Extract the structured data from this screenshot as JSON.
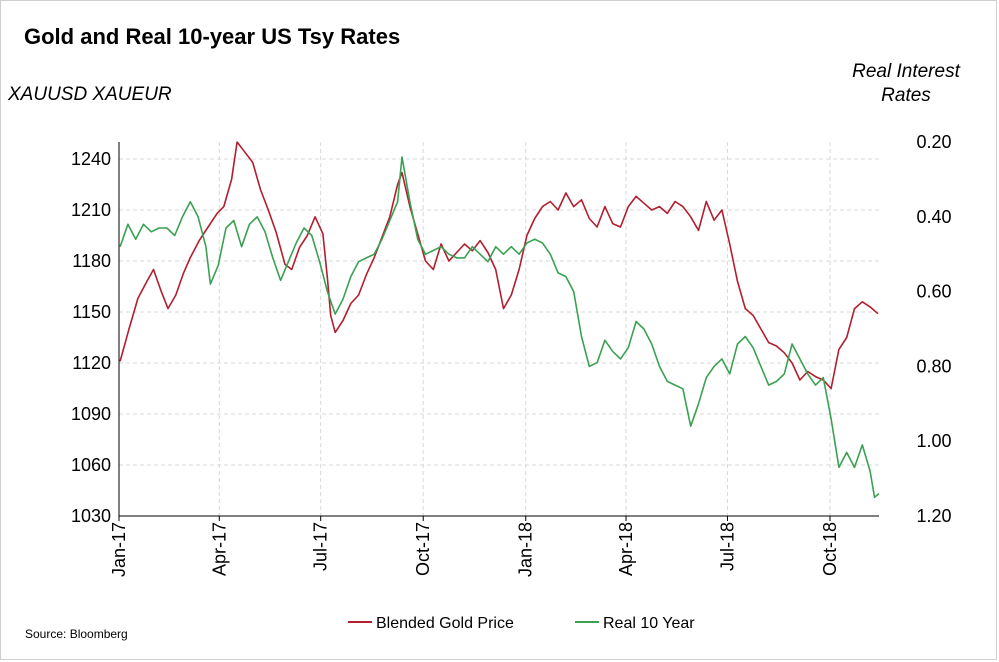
{
  "chart_data": {
    "type": "line",
    "title": "Gold and Real 10-year US Tsy Rates",
    "ylabel_left": "XAUUSD XAUEUR",
    "ylabel_right": "Real Interest Rates",
    "source": "Source: Bloomberg",
    "x_ticks": [
      "Jan-17",
      "Apr-17",
      "Jul-17",
      "Oct-17",
      "Jan-18",
      "Apr-18",
      "Jul-18",
      "Oct-18"
    ],
    "x_range": [
      "2017-01-01",
      "2018-11-14"
    ],
    "y_left": {
      "ticks": [
        1240,
        1210,
        1180,
        1150,
        1120,
        1090,
        1060,
        1030
      ],
      "lim": [
        1030,
        1250
      ]
    },
    "y_right": {
      "ticks": [
        "0.20",
        "0.40",
        "0.60",
        "0.80",
        "1.00",
        "1.20"
      ],
      "lim": [
        0.2,
        1.2
      ],
      "inverted": true
    },
    "grid": true,
    "legend_position": "bottom",
    "series": [
      {
        "name": "Blended Gold Price",
        "color": "#b21e2e",
        "axis": "left",
        "points": [
          [
            "2017-01-02",
            1121
          ],
          [
            "2017-01-10",
            1140
          ],
          [
            "2017-01-18",
            1158
          ],
          [
            "2017-01-26",
            1168
          ],
          [
            "2017-02-01",
            1175
          ],
          [
            "2017-02-08",
            1162
          ],
          [
            "2017-02-14",
            1152
          ],
          [
            "2017-02-21",
            1160
          ],
          [
            "2017-02-28",
            1173
          ],
          [
            "2017-03-06",
            1182
          ],
          [
            "2017-03-14",
            1192
          ],
          [
            "2017-03-22",
            1200
          ],
          [
            "2017-03-30",
            1208
          ],
          [
            "2017-04-05",
            1212
          ],
          [
            "2017-04-12",
            1228
          ],
          [
            "2017-04-17",
            1250
          ],
          [
            "2017-04-24",
            1244
          ],
          [
            "2017-05-01",
            1238
          ],
          [
            "2017-05-08",
            1222
          ],
          [
            "2017-05-15",
            1210
          ],
          [
            "2017-05-22",
            1197
          ],
          [
            "2017-05-30",
            1178
          ],
          [
            "2017-06-05",
            1175
          ],
          [
            "2017-06-12",
            1188
          ],
          [
            "2017-06-19",
            1195
          ],
          [
            "2017-06-26",
            1206
          ],
          [
            "2017-07-03",
            1196
          ],
          [
            "2017-07-07",
            1170
          ],
          [
            "2017-07-10",
            1148
          ],
          [
            "2017-07-14",
            1138
          ],
          [
            "2017-07-21",
            1145
          ],
          [
            "2017-07-28",
            1155
          ],
          [
            "2017-08-04",
            1160
          ],
          [
            "2017-08-11",
            1172
          ],
          [
            "2017-08-18",
            1182
          ],
          [
            "2017-08-25",
            1194
          ],
          [
            "2017-09-01",
            1206
          ],
          [
            "2017-09-08",
            1225
          ],
          [
            "2017-09-12",
            1232
          ],
          [
            "2017-09-19",
            1212
          ],
          [
            "2017-09-26",
            1196
          ],
          [
            "2017-10-03",
            1180
          ],
          [
            "2017-10-10",
            1175
          ],
          [
            "2017-10-17",
            1190
          ],
          [
            "2017-10-24",
            1180
          ],
          [
            "2017-10-31",
            1185
          ],
          [
            "2017-11-07",
            1190
          ],
          [
            "2017-11-14",
            1186
          ],
          [
            "2017-11-21",
            1192
          ],
          [
            "2017-11-28",
            1185
          ],
          [
            "2017-12-05",
            1175
          ],
          [
            "2017-12-12",
            1152
          ],
          [
            "2017-12-19",
            1160
          ],
          [
            "2017-12-26",
            1175
          ],
          [
            "2018-01-02",
            1195
          ],
          [
            "2018-01-09",
            1205
          ],
          [
            "2018-01-16",
            1212
          ],
          [
            "2018-01-23",
            1215
          ],
          [
            "2018-01-30",
            1210
          ],
          [
            "2018-02-06",
            1220
          ],
          [
            "2018-02-13",
            1212
          ],
          [
            "2018-02-20",
            1216
          ],
          [
            "2018-02-27",
            1205
          ],
          [
            "2018-03-06",
            1200
          ],
          [
            "2018-03-13",
            1212
          ],
          [
            "2018-03-20",
            1202
          ],
          [
            "2018-03-27",
            1200
          ],
          [
            "2018-04-03",
            1212
          ],
          [
            "2018-04-10",
            1218
          ],
          [
            "2018-04-17",
            1214
          ],
          [
            "2018-04-24",
            1210
          ],
          [
            "2018-05-01",
            1212
          ],
          [
            "2018-05-08",
            1208
          ],
          [
            "2018-05-15",
            1215
          ],
          [
            "2018-05-22",
            1212
          ],
          [
            "2018-05-29",
            1206
          ],
          [
            "2018-06-05",
            1198
          ],
          [
            "2018-06-12",
            1215
          ],
          [
            "2018-06-19",
            1204
          ],
          [
            "2018-06-26",
            1210
          ],
          [
            "2018-07-03",
            1190
          ],
          [
            "2018-07-10",
            1168
          ],
          [
            "2018-07-17",
            1152
          ],
          [
            "2018-07-24",
            1148
          ],
          [
            "2018-07-31",
            1140
          ],
          [
            "2018-08-07",
            1132
          ],
          [
            "2018-08-14",
            1130
          ],
          [
            "2018-08-21",
            1126
          ],
          [
            "2018-08-28",
            1120
          ],
          [
            "2018-09-04",
            1110
          ],
          [
            "2018-09-11",
            1115
          ],
          [
            "2018-09-18",
            1112
          ],
          [
            "2018-09-25",
            1110
          ],
          [
            "2018-10-02",
            1105
          ],
          [
            "2018-10-09",
            1128
          ],
          [
            "2018-10-16",
            1135
          ],
          [
            "2018-10-23",
            1152
          ],
          [
            "2018-10-30",
            1156
          ],
          [
            "2018-11-06",
            1153
          ],
          [
            "2018-11-13",
            1149
          ]
        ]
      },
      {
        "name": "Real 10 Year",
        "color": "#3aa152",
        "axis": "right",
        "points": [
          [
            "2017-01-02",
            0.48
          ],
          [
            "2017-01-09",
            0.42
          ],
          [
            "2017-01-16",
            0.46
          ],
          [
            "2017-01-23",
            0.42
          ],
          [
            "2017-01-30",
            0.44
          ],
          [
            "2017-02-06",
            0.43
          ],
          [
            "2017-02-13",
            0.43
          ],
          [
            "2017-02-20",
            0.45
          ],
          [
            "2017-02-27",
            0.4
          ],
          [
            "2017-03-06",
            0.36
          ],
          [
            "2017-03-13",
            0.4
          ],
          [
            "2017-03-20",
            0.48
          ],
          [
            "2017-03-24",
            0.58
          ],
          [
            "2017-03-31",
            0.53
          ],
          [
            "2017-04-07",
            0.43
          ],
          [
            "2017-04-14",
            0.41
          ],
          [
            "2017-04-21",
            0.48
          ],
          [
            "2017-04-28",
            0.42
          ],
          [
            "2017-05-05",
            0.4
          ],
          [
            "2017-05-12",
            0.44
          ],
          [
            "2017-05-19",
            0.51
          ],
          [
            "2017-05-26",
            0.57
          ],
          [
            "2017-06-02",
            0.52
          ],
          [
            "2017-06-09",
            0.47
          ],
          [
            "2017-06-16",
            0.43
          ],
          [
            "2017-06-23",
            0.45
          ],
          [
            "2017-06-30",
            0.52
          ],
          [
            "2017-07-07",
            0.6
          ],
          [
            "2017-07-14",
            0.66
          ],
          [
            "2017-07-21",
            0.62
          ],
          [
            "2017-07-28",
            0.56
          ],
          [
            "2017-08-04",
            0.52
          ],
          [
            "2017-08-11",
            0.51
          ],
          [
            "2017-08-18",
            0.5
          ],
          [
            "2017-08-25",
            0.46
          ],
          [
            "2017-09-01",
            0.41
          ],
          [
            "2017-09-08",
            0.36
          ],
          [
            "2017-09-12",
            0.24
          ],
          [
            "2017-09-19",
            0.36
          ],
          [
            "2017-09-26",
            0.46
          ],
          [
            "2017-10-03",
            0.5
          ],
          [
            "2017-10-10",
            0.49
          ],
          [
            "2017-10-17",
            0.48
          ],
          [
            "2017-10-24",
            0.5
          ],
          [
            "2017-10-31",
            0.51
          ],
          [
            "2017-11-07",
            0.51
          ],
          [
            "2017-11-14",
            0.48
          ],
          [
            "2017-11-21",
            0.5
          ],
          [
            "2017-11-28",
            0.52
          ],
          [
            "2017-12-05",
            0.48
          ],
          [
            "2017-12-12",
            0.5
          ],
          [
            "2017-12-19",
            0.48
          ],
          [
            "2017-12-26",
            0.5
          ],
          [
            "2018-01-02",
            0.47
          ],
          [
            "2018-01-09",
            0.46
          ],
          [
            "2018-01-16",
            0.47
          ],
          [
            "2018-01-23",
            0.5
          ],
          [
            "2018-01-30",
            0.55
          ],
          [
            "2018-02-06",
            0.56
          ],
          [
            "2018-02-13",
            0.6
          ],
          [
            "2018-02-20",
            0.72
          ],
          [
            "2018-02-27",
            0.8
          ],
          [
            "2018-03-06",
            0.79
          ],
          [
            "2018-03-13",
            0.73
          ],
          [
            "2018-03-20",
            0.76
          ],
          [
            "2018-03-27",
            0.78
          ],
          [
            "2018-04-03",
            0.75
          ],
          [
            "2018-04-10",
            0.68
          ],
          [
            "2018-04-17",
            0.7
          ],
          [
            "2018-04-24",
            0.74
          ],
          [
            "2018-05-01",
            0.8
          ],
          [
            "2018-05-08",
            0.84
          ],
          [
            "2018-05-15",
            0.85
          ],
          [
            "2018-05-22",
            0.86
          ],
          [
            "2018-05-29",
            0.96
          ],
          [
            "2018-06-05",
            0.9
          ],
          [
            "2018-06-12",
            0.83
          ],
          [
            "2018-06-19",
            0.8
          ],
          [
            "2018-06-26",
            0.78
          ],
          [
            "2018-07-03",
            0.82
          ],
          [
            "2018-07-10",
            0.74
          ],
          [
            "2018-07-17",
            0.72
          ],
          [
            "2018-07-24",
            0.75
          ],
          [
            "2018-07-31",
            0.8
          ],
          [
            "2018-08-07",
            0.85
          ],
          [
            "2018-08-14",
            0.84
          ],
          [
            "2018-08-21",
            0.82
          ],
          [
            "2018-08-28",
            0.74
          ],
          [
            "2018-09-04",
            0.78
          ],
          [
            "2018-09-11",
            0.82
          ],
          [
            "2018-09-18",
            0.85
          ],
          [
            "2018-09-25",
            0.83
          ],
          [
            "2018-10-02",
            0.94
          ],
          [
            "2018-10-09",
            1.07
          ],
          [
            "2018-10-16",
            1.03
          ],
          [
            "2018-10-23",
            1.07
          ],
          [
            "2018-10-30",
            1.01
          ],
          [
            "2018-11-06",
            1.08
          ],
          [
            "2018-11-10",
            1.15
          ],
          [
            "2018-11-14",
            1.14
          ]
        ]
      }
    ]
  }
}
